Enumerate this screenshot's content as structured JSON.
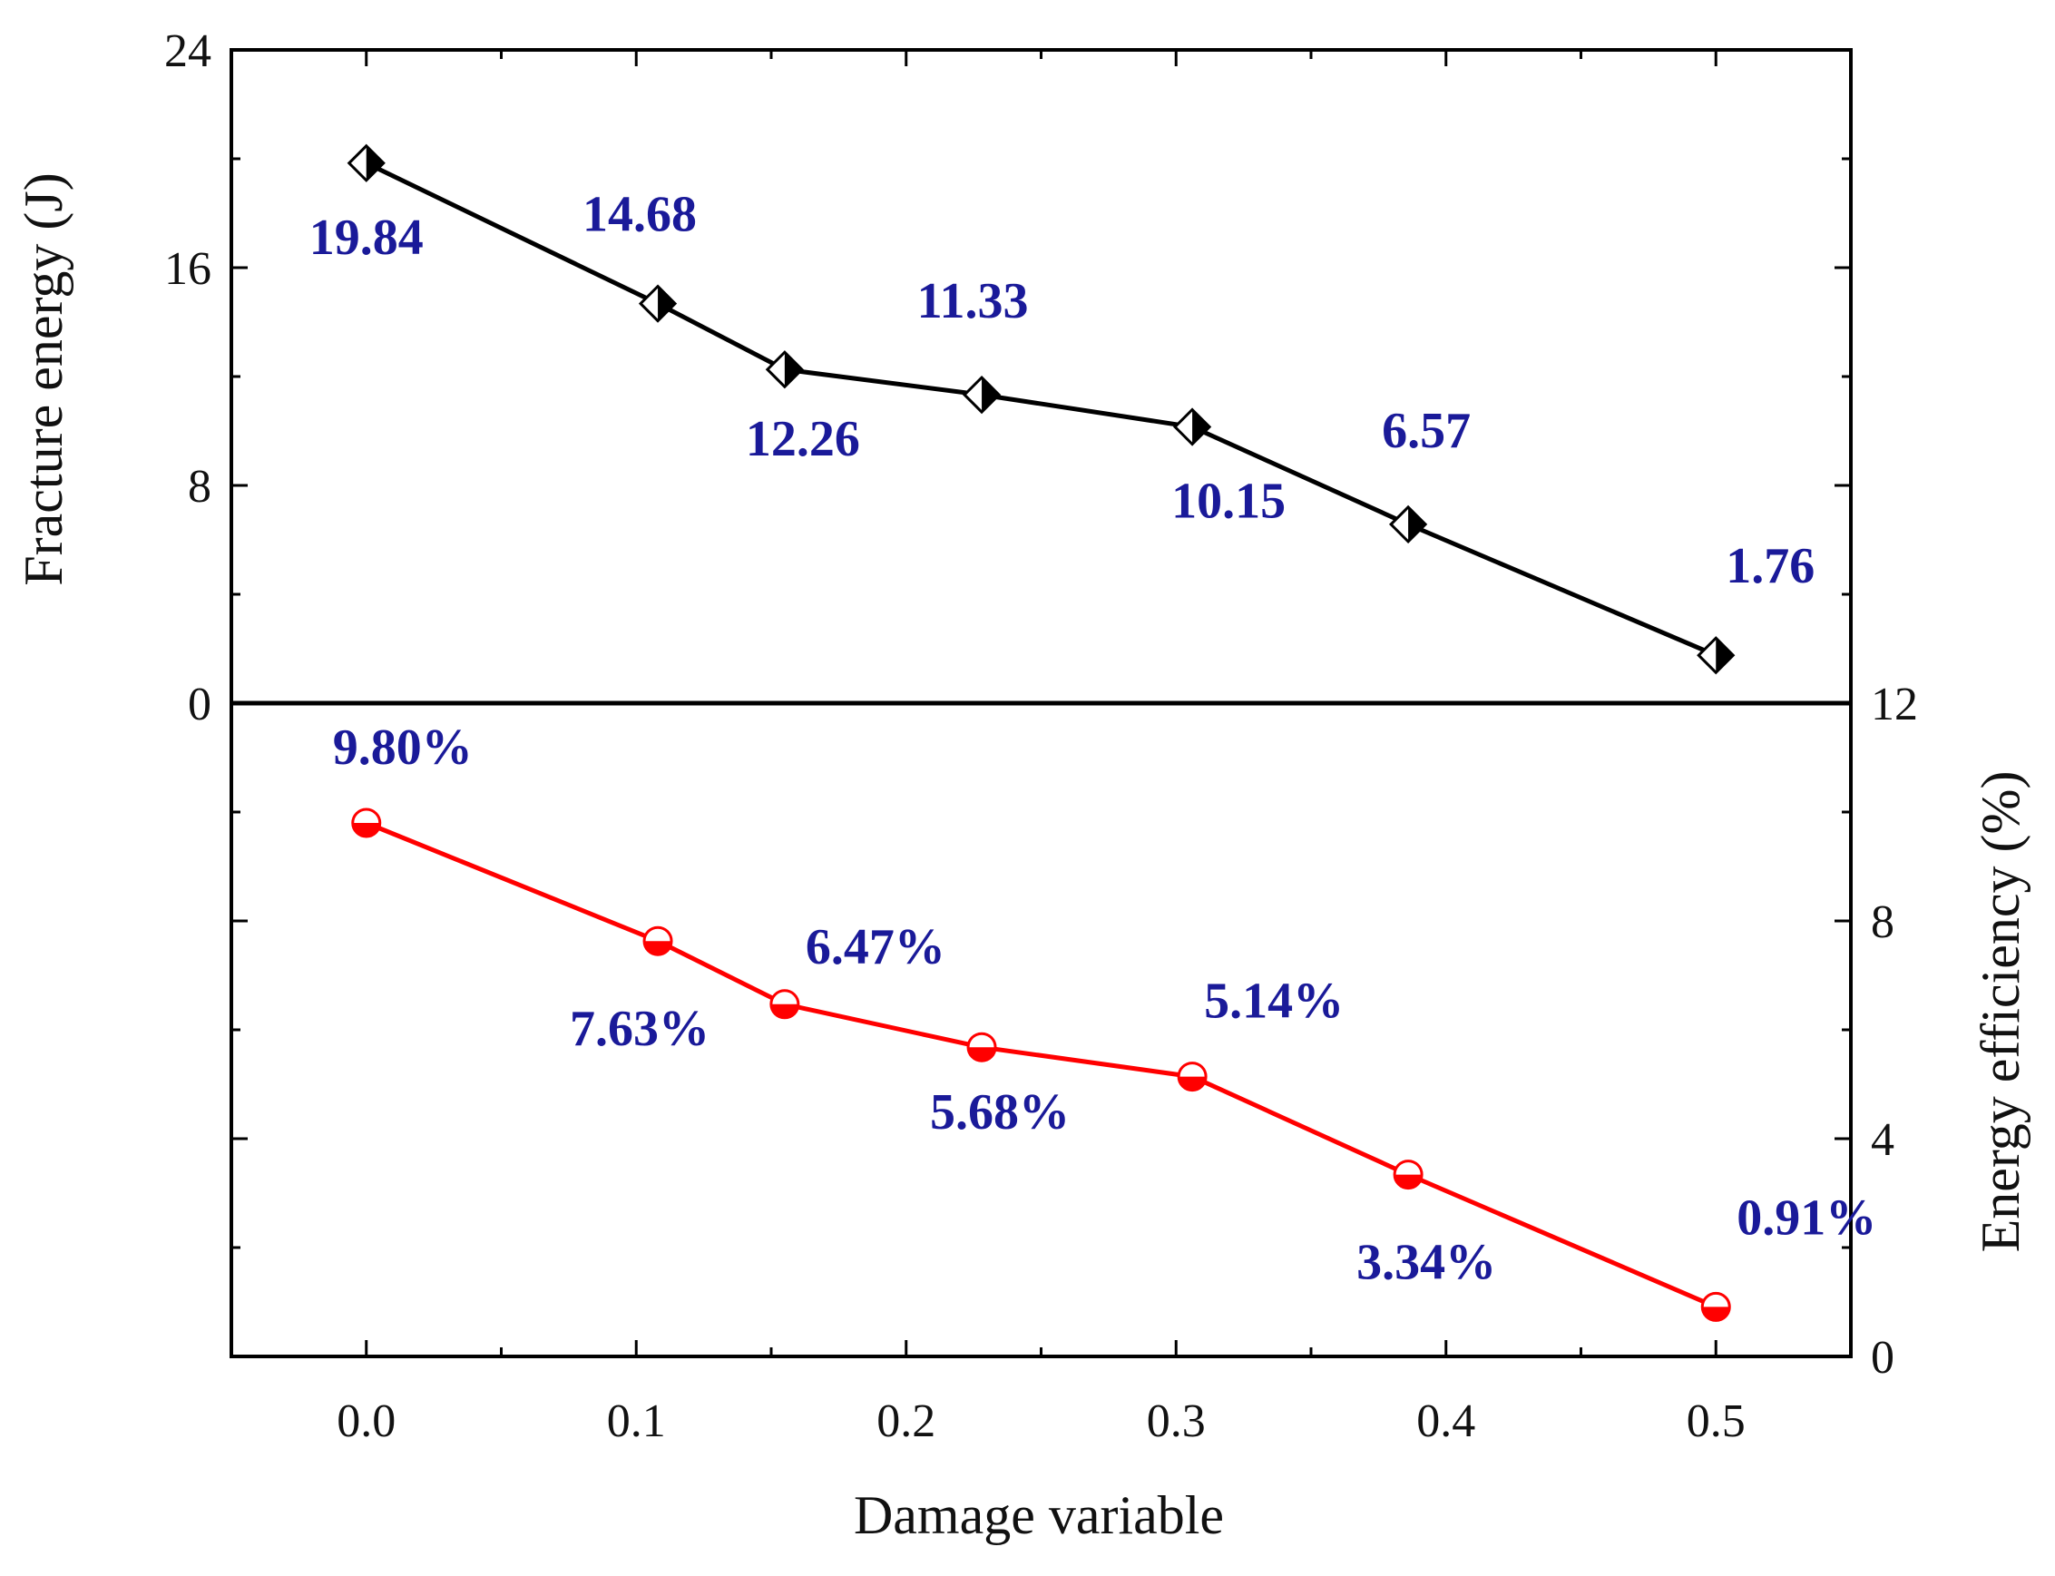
{
  "chart_data": {
    "type": "line",
    "xlabel": "Damage variable",
    "xlim": [
      -0.05,
      0.55
    ],
    "xticks": [
      "0.0",
      "0.1",
      "0.2",
      "0.3",
      "0.4",
      "0.5"
    ],
    "x": [
      0.0,
      0.108,
      0.155,
      0.228,
      0.306,
      0.386,
      0.5
    ],
    "panels": [
      {
        "position": "top",
        "ylabel": "Fracture energy (J)",
        "axis_side": "left",
        "ylim": [
          0,
          24
        ],
        "yticks": [
          "0",
          "8",
          "16",
          "24"
        ],
        "series": [
          {
            "name": "Fracture energy",
            "marker": "half-filled-diamond",
            "values": [
              19.84,
              14.68,
              12.26,
              11.33,
              10.15,
              6.57,
              1.76
            ],
            "labels": [
              "19.84",
              "14.68",
              "12.26",
              "11.33",
              "10.15",
              "6.57",
              "1.76"
            ]
          }
        ]
      },
      {
        "position": "bottom",
        "ylabel": "Energy efficiency (%)",
        "axis_side": "right",
        "ylim": [
          0,
          12
        ],
        "yticks": [
          "0",
          "4",
          "8",
          "12"
        ],
        "series": [
          {
            "name": "Energy efficiency",
            "marker": "half-filled-circle",
            "values": [
              9.8,
              7.63,
              6.47,
              5.68,
              5.14,
              3.34,
              0.91
            ],
            "labels": [
              "9.80%",
              "7.63%",
              "6.47%",
              "5.68%",
              "5.14%",
              "3.34%",
              "0.91%"
            ]
          }
        ]
      }
    ],
    "colors": {
      "energy_line": "#000000",
      "efficiency_line": "#ff0000",
      "label_text": "#1a1a99"
    }
  }
}
